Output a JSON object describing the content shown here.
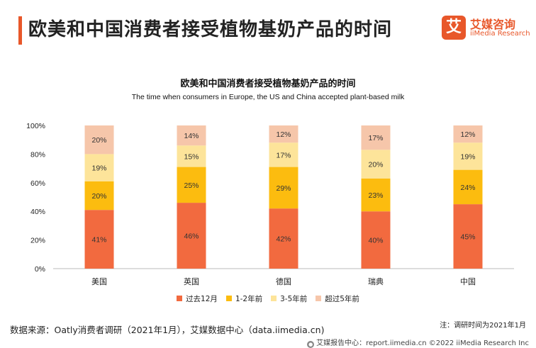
{
  "header": {
    "title": "欧美和中国消费者接受植物基奶产品的时间",
    "logo_mark": "艾",
    "logo_cn": "艾媒咨询",
    "logo_en": "iiMedia Research"
  },
  "chart_data": {
    "type": "bar",
    "stacked": true,
    "title": "欧美和中国消费者接受植物基奶产品的时间",
    "subtitle": "The time when consumers in Europe, the US and China accepted plant-based milk",
    "categories": [
      "美国",
      "英国",
      "德国",
      "瑞典",
      "中国"
    ],
    "series": [
      {
        "name": "过去12月",
        "color": "#f26a3f",
        "values": [
          41,
          46,
          42,
          40,
          45
        ]
      },
      {
        "name": "1-2年前",
        "color": "#fcbc0f",
        "values": [
          20,
          25,
          29,
          23,
          24
        ]
      },
      {
        "name": "3-5年前",
        "color": "#fde49a",
        "values": [
          19,
          15,
          17,
          20,
          19
        ]
      },
      {
        "name": "超过5年前",
        "color": "#f6c6aa",
        "values": [
          20,
          14,
          12,
          17,
          12
        ]
      }
    ],
    "value_suffix": "%",
    "ylim": [
      0,
      100
    ],
    "yticks": [
      "0%",
      "20%",
      "40%",
      "60%",
      "80%",
      "100%"
    ],
    "grid": false,
    "legend": "bottom"
  },
  "note": "注：调研时间为2021年1月",
  "source": "数据来源：Oatly消费者调研（2021年1月），艾媒数据中心（data.iimedia.cn)",
  "footer": {
    "text": "艾媒报告中心：report.iimedia.cn ©2022  iiMedia Research Inc"
  }
}
